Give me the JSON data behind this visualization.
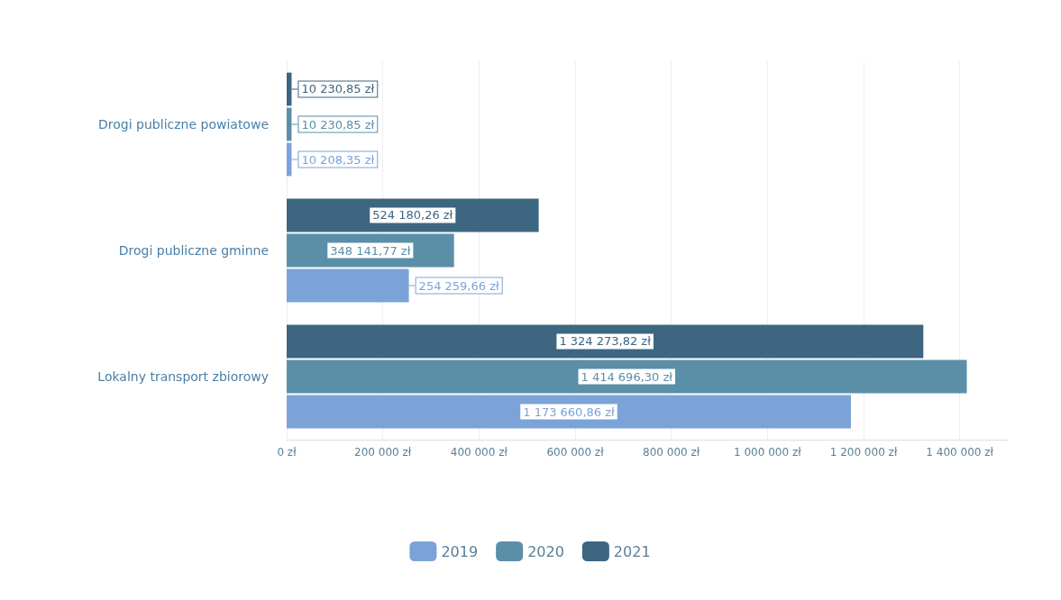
{
  "chart_data": {
    "type": "bar",
    "orientation": "horizontal",
    "categories": [
      "Drogi publiczne powiatowe",
      "Drogi publiczne gminne",
      "Lokalny transport zbiorowy"
    ],
    "series": [
      {
        "name": "2021",
        "color": "#3d6680",
        "values": [
          10230.85,
          524180.26,
          1324273.82
        ],
        "value_labels": [
          "10 230,85 zł",
          "524 180,26 zł",
          "1 324 273,82 zł"
        ]
      },
      {
        "name": "2020",
        "color": "#5b8fa8",
        "values": [
          10230.85,
          348141.77,
          1414696.3
        ],
        "value_labels": [
          "10 230,85 zł",
          "348 141,77 zł",
          "1 414 696,30 zł"
        ]
      },
      {
        "name": "2019",
        "color": "#7ba3d8",
        "values": [
          10208.35,
          254259.66,
          1173660.86
        ],
        "value_labels": [
          "10 208,35 zł",
          "254 259,66 zł",
          "1 173 660,86 zł"
        ]
      }
    ],
    "xlim": [
      0,
      1500000
    ],
    "xticks": [
      {
        "value": 0,
        "label": "0 zł"
      },
      {
        "value": 200000,
        "label": "200 000 zł"
      },
      {
        "value": 400000,
        "label": "400 000 zł"
      },
      {
        "value": 600000,
        "label": "600 000 zł"
      },
      {
        "value": 800000,
        "label": "800 000 zł"
      },
      {
        "value": 1000000,
        "label": "1 000 000 zł"
      },
      {
        "value": 1200000,
        "label": "1 200 000 zł"
      },
      {
        "value": 1400000,
        "label": "1 400 000 zł"
      }
    ],
    "grid": "x",
    "legend": "bottom"
  }
}
